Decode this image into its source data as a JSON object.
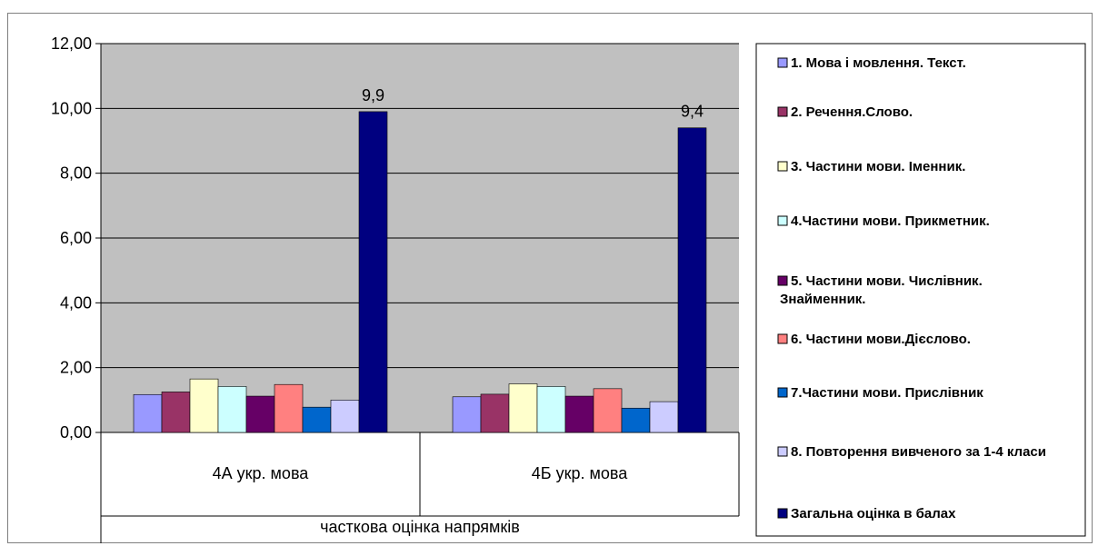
{
  "chart_data": {
    "type": "bar",
    "categories": [
      "4А укр. мова",
      "4Б укр. мова"
    ],
    "group_label": "часткова оцінка напрямків",
    "ylim": [
      0,
      12
    ],
    "yticks": [
      "0,00",
      "2,00",
      "4,00",
      "6,00",
      "8,00",
      "10,00",
      "12,00"
    ],
    "ytick_values": [
      0,
      2,
      4,
      6,
      8,
      10,
      12
    ],
    "grid": true,
    "legend_position": "right",
    "series": [
      {
        "name": "1. Мова і мовлення. Текст.",
        "color": "#9999FF",
        "values": [
          1.17,
          1.1
        ]
      },
      {
        "name": "2. Речення.Слово.",
        "color": "#993366",
        "values": [
          1.25,
          1.18
        ]
      },
      {
        "name": "3. Частини мови. Іменник.",
        "color": "#FFFFCC",
        "values": [
          1.65,
          1.5
        ]
      },
      {
        "name": "4.Частини мови. Прикметник.",
        "color": "#CCFFFF",
        "values": [
          1.42,
          1.42
        ]
      },
      {
        "name": "5. Частини мови. Числівник. Знайменник.",
        "color": "#660066",
        "values": [
          1.12,
          1.12
        ]
      },
      {
        "name": "6. Частини мови.Дієслово.",
        "color": "#FF8080",
        "values": [
          1.48,
          1.35
        ]
      },
      {
        "name": "7.Частини мови. Прислівник",
        "color": "#0066CC",
        "values": [
          0.78,
          0.75
        ]
      },
      {
        "name": "8. Повторення вивченого за 1-4 класи",
        "color": "#CCCCFF",
        "values": [
          1.0,
          0.95
        ]
      },
      {
        "name": "Загальна оцінка в балах",
        "color": "#000080",
        "values": [
          9.9,
          9.4
        ]
      }
    ],
    "data_labels": [
      "9,9",
      "9,4"
    ],
    "plot_background": "#C0C0C0"
  }
}
